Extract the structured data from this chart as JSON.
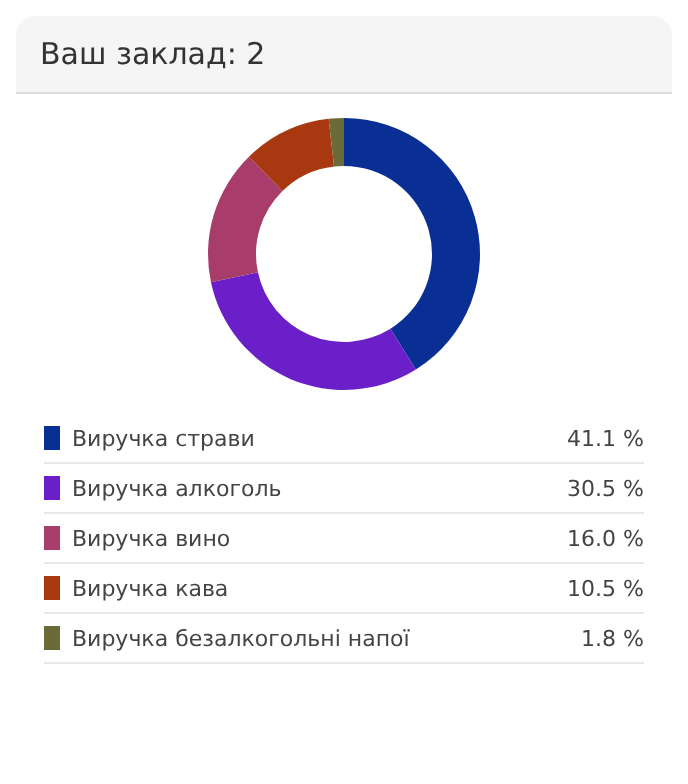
{
  "chart_data": {
    "type": "donut",
    "title": "Ваш заклад: 2",
    "categories": [
      "Виручка страви",
      "Виручка алкоголь",
      "Виручка вино",
      "Виручка кава",
      "Виручка безалкогольні напої"
    ],
    "values": [
      41.1,
      30.5,
      16.0,
      10.5,
      1.8
    ],
    "colors": [
      "#0a2f94",
      "#6a1fc9",
      "#a83c6a",
      "#a8380f",
      "#6b6b3a"
    ],
    "value_labels": [
      "41.1 %",
      "30.5 %",
      "16.0 %",
      "10.5 %",
      "1.8 %"
    ],
    "legend": "bottom"
  }
}
